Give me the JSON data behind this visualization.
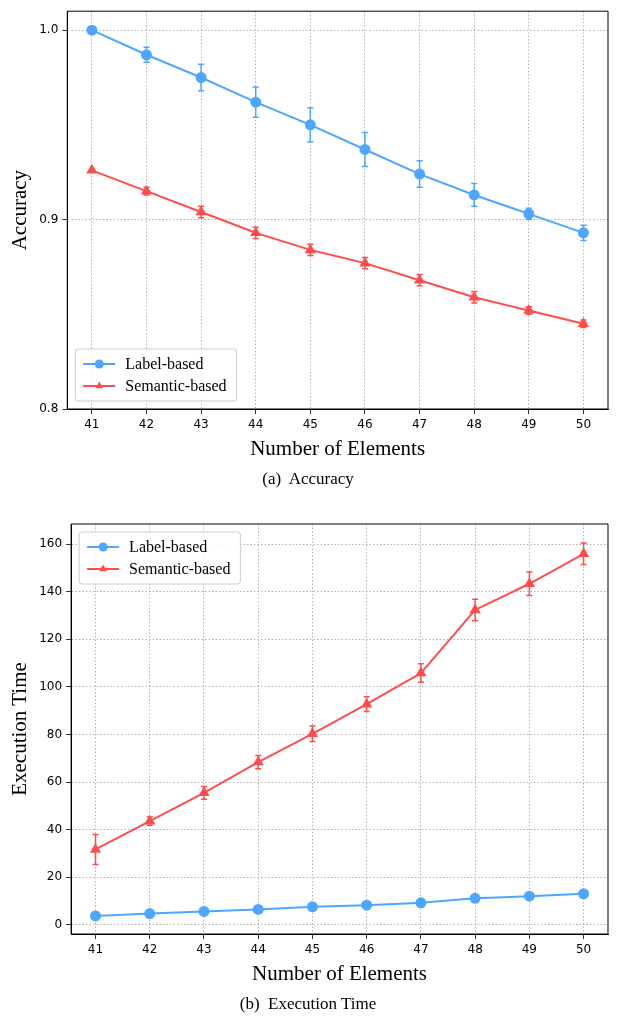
{
  "chart_data": [
    {
      "type": "line",
      "title": "(a)  Accuracy",
      "xlabel": "Number of Elements",
      "ylabel": "Accuracy",
      "x": [
        41,
        42,
        43,
        44,
        45,
        46,
        47,
        48,
        49,
        50
      ],
      "xlim": [
        40.55,
        50.45
      ],
      "xticks": [
        41,
        42,
        43,
        44,
        45,
        46,
        47,
        48,
        49,
        50
      ],
      "ylim": [
        0.8,
        1.01
      ],
      "yticks": [
        0.8,
        0.9,
        {
          "value": 1.0,
          "label": "1.0"
        }
      ],
      "grid": true,
      "legend": "bottom left",
      "series": [
        {
          "name": "Label-based",
          "color": "#4da6ff",
          "marker": "circle",
          "values": [
            1.0,
            0.987,
            0.975,
            0.962,
            0.95,
            0.937,
            0.924,
            0.913,
            0.903,
            0.893
          ],
          "errors": [
            0,
            0.004,
            0.007,
            0.008,
            0.009,
            0.009,
            0.007,
            0.006,
            0.003,
            0.004
          ]
        },
        {
          "name": "Semantic-based",
          "color": "#ff4d4d",
          "marker": "triangle",
          "values": [
            0.926,
            0.915,
            0.904,
            0.893,
            0.884,
            0.877,
            0.868,
            0.859,
            0.852,
            0.845
          ],
          "errors": [
            0,
            0.002,
            0.003,
            0.003,
            0.003,
            0.003,
            0.003,
            0.003,
            0.002,
            0.002
          ]
        }
      ]
    },
    {
      "type": "line",
      "title": "(b)  Execution Time",
      "xlabel": "Number of Elements",
      "ylabel": "Execution Time",
      "x": [
        41,
        42,
        43,
        44,
        45,
        46,
        47,
        48,
        49,
        50
      ],
      "xlim": [
        40.55,
        50.45
      ],
      "xticks": [
        41,
        42,
        43,
        44,
        45,
        46,
        47,
        48,
        49,
        50
      ],
      "ylim": [
        -3.8,
        168.4
      ],
      "yticks": [
        0,
        20,
        40,
        60,
        80,
        100,
        120,
        140,
        160
      ],
      "grid": true,
      "legend": "top left",
      "series": [
        {
          "name": "Label-based",
          "color": "#4da6ff",
          "marker": "circle",
          "values": [
            3.8,
            4.8,
            5.7,
            6.5,
            7.6,
            8.3,
            9.3,
            11.2,
            12.1,
            13.1
          ]
        },
        {
          "name": "Semantic-based",
          "color": "#ff4d4d",
          "marker": "triangle",
          "values": [
            31.7,
            43.6,
            55.5,
            68.4,
            80.3,
            92.7,
            105.8,
            132.3,
            143.3,
            155.9
          ],
          "errors": [
            6.3,
            1.7,
            2.7,
            2.8,
            3.3,
            3.1,
            3.9,
            4.5,
            4.9,
            4.5
          ]
        }
      ]
    }
  ]
}
